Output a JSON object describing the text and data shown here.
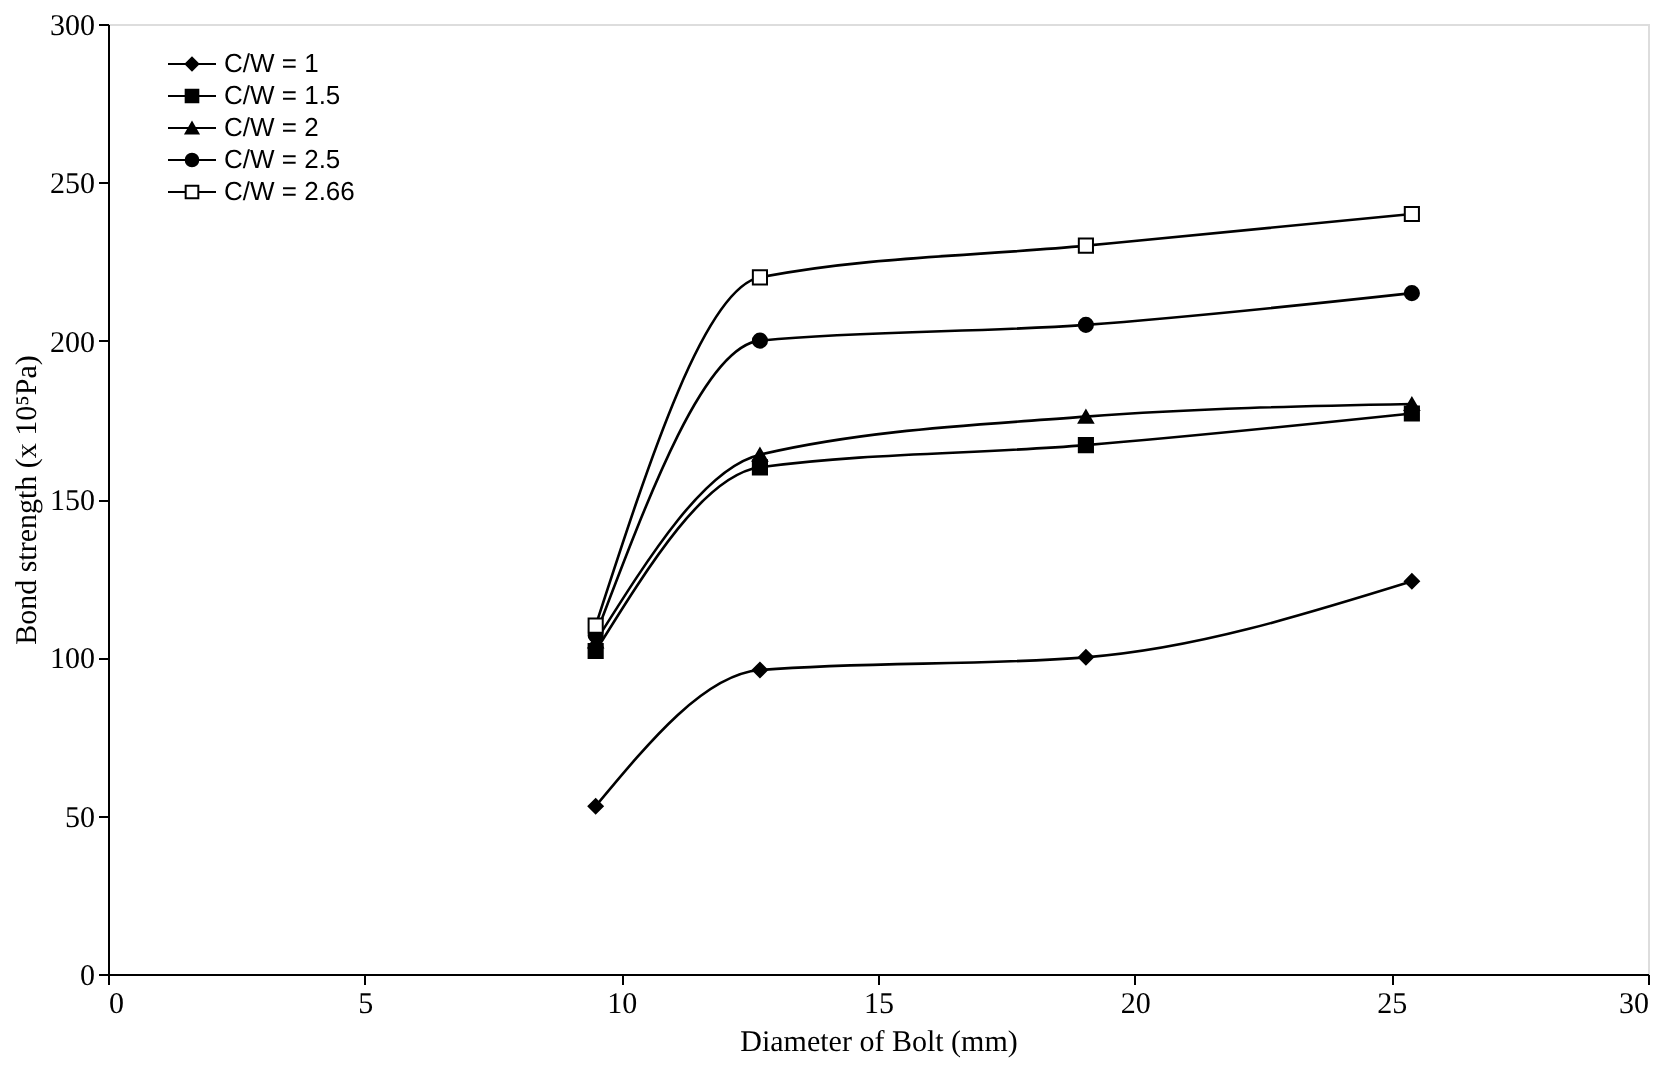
{
  "chart_data": {
    "type": "line",
    "xlabel": "Diameter of Bolt (mm)",
    "ylabel": "Bond strength (x 10⁵Pa)",
    "x": [
      9.5,
      12.7,
      19.05,
      25.4
    ],
    "series": [
      {
        "name": "C/W = 1",
        "color": "#000000",
        "marker": "diamond",
        "values": [
          53,
          96,
          100,
          124
        ]
      },
      {
        "name": "C/W = 1.5",
        "color": "#000000",
        "marker": "square",
        "values": [
          102,
          160,
          167,
          177
        ]
      },
      {
        "name": "C/W = 2",
        "color": "#000000",
        "marker": "triangle",
        "values": [
          105,
          164,
          176,
          180
        ]
      },
      {
        "name": "C/W = 2.5",
        "color": "#000000",
        "marker": "circle",
        "values": [
          107,
          200,
          205,
          215
        ]
      },
      {
        "name": "C/W = 2.66",
        "color": "#000000",
        "marker": "square_open",
        "values": [
          110,
          220,
          230,
          240
        ]
      }
    ],
    "xlim": [
      0,
      30
    ],
    "xticks": [
      0,
      5,
      10,
      15,
      20,
      25,
      30
    ],
    "ylim": [
      0,
      300
    ],
    "yticks": [
      0,
      50,
      100,
      150,
      200,
      250,
      300
    ],
    "grid": false,
    "legend": "top left",
    "line_style": "solid"
  }
}
